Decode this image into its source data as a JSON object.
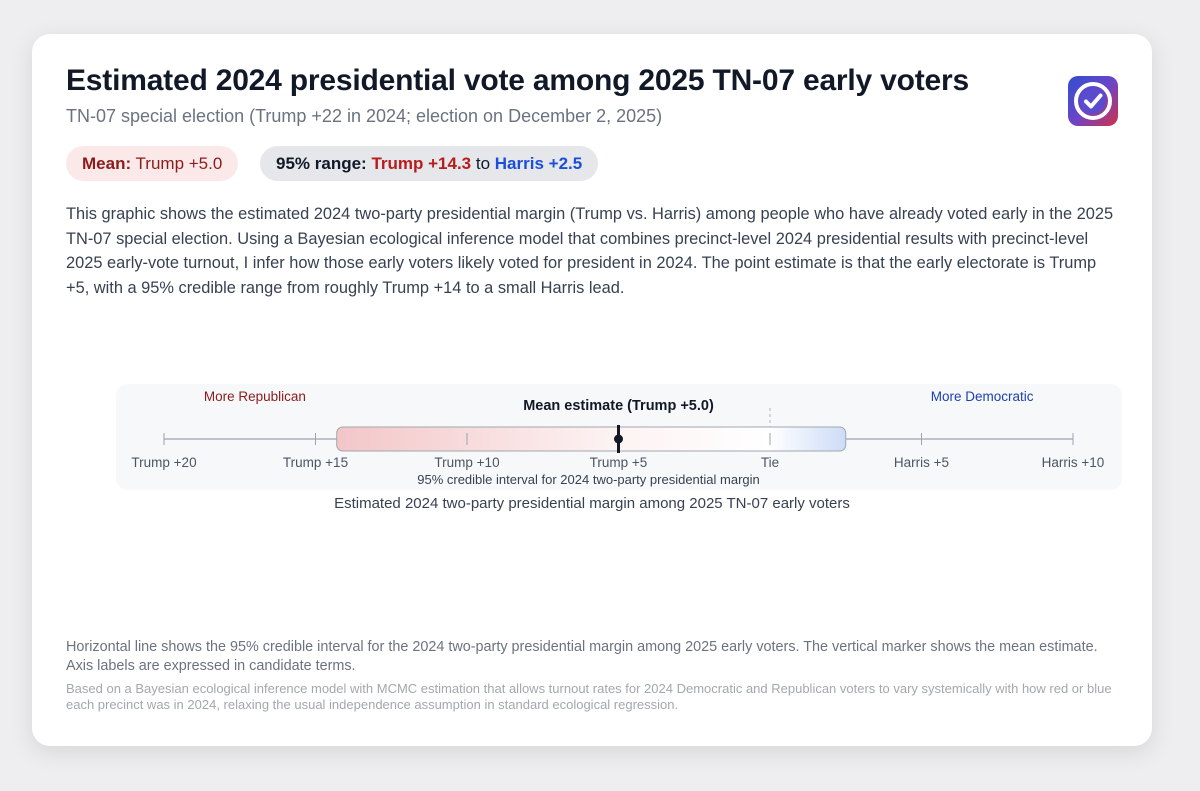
{
  "header": {
    "title": "Estimated 2024 presidential vote among 2025 TN-07 early voters",
    "subtitle": "TN-07 special election (Trump +22 in 2024; election on December 2, 2025)",
    "logo_icon": "checkmark-badge-icon"
  },
  "pills": {
    "mean_label": "Mean:",
    "mean_value": "Trump +5.0",
    "range_label": "95% range:",
    "range_low": "Trump +14.3",
    "range_to": "to",
    "range_high": "Harris +2.5"
  },
  "description": "This graphic shows the estimated 2024 two-party presidential margin (Trump vs. Harris) among people who have already voted early in the 2025 TN-07 special election. Using a Bayesian ecological inference model that combines precinct-level 2024 presidential results with precinct-level 2025 early-vote turnout, I infer how those early voters likely voted for president in 2024. The point estimate is that the early electorate is Trump +5, with a 95% credible range from roughly Trump +14 to a small Harris lead.",
  "chart_data": {
    "type": "interval",
    "title": "Mean estimate (Trump +5.0)",
    "xlabel": "Estimated 2024 two-party presidential margin among 2025 TN-07 early voters",
    "interval_label": "95% credible interval for 2024 two-party presidential margin",
    "left_direction_label": "More Republican",
    "right_direction_label": "More Democratic",
    "xlim": [
      -20,
      10
    ],
    "ticks": [
      {
        "value": -20,
        "label": "Trump +20"
      },
      {
        "value": -15,
        "label": "Trump +15"
      },
      {
        "value": -10,
        "label": "Trump +10"
      },
      {
        "value": -5,
        "label": "Trump +5"
      },
      {
        "value": 0,
        "label": "Tie"
      },
      {
        "value": 5,
        "label": "Harris +5"
      },
      {
        "value": 10,
        "label": "Harris +10"
      }
    ],
    "mean": -5.0,
    "ci_low": -14.3,
    "ci_high": 2.5,
    "colors": {
      "republican": "#f3c6c8",
      "democratic": "#cddcf7",
      "mean_marker": "#111827"
    }
  },
  "footer": {
    "note": "Horizontal line shows the 95% credible interval for the 2024 two-party presidential margin among 2025 early voters. The vertical marker shows the mean estimate. Axis labels are expressed in candidate terms.",
    "source": "Based on a Bayesian ecological inference model with MCMC estimation that allows turnout rates for 2024 Democratic and Republican voters to vary systemically with how red or blue each precinct was in 2024, relaxing the usual independence assumption in standard ecological regression."
  }
}
